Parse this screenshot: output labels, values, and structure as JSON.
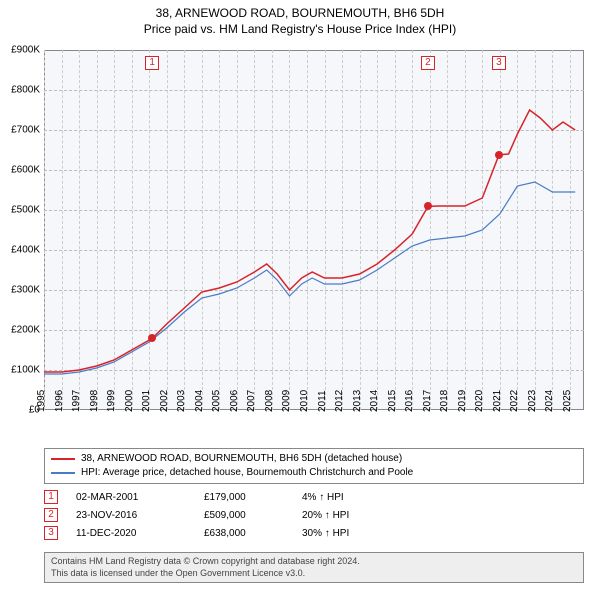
{
  "title": {
    "line1": "38, ARNEWOOD ROAD, BOURNEMOUTH, BH6 5DH",
    "line2": "Price paid vs. HM Land Registry's House Price Index (HPI)"
  },
  "chart": {
    "type": "line",
    "background_color": "#f5f7fa",
    "border_color": "#888888",
    "grid_color": "#cccccc",
    "hgrid_color": "#bbbbbb",
    "xlim": [
      1995,
      2025.8
    ],
    "ylim": [
      0,
      900000
    ],
    "ytick_step": 100000,
    "yticks": [
      "£0",
      "£100K",
      "£200K",
      "£300K",
      "£400K",
      "£500K",
      "£600K",
      "£700K",
      "£800K",
      "£900K"
    ],
    "xticks": [
      "1995",
      "1996",
      "1997",
      "1998",
      "1999",
      "2000",
      "2001",
      "2002",
      "2003",
      "2004",
      "2005",
      "2006",
      "2007",
      "2008",
      "2009",
      "2010",
      "2011",
      "2012",
      "2013",
      "2014",
      "2015",
      "2016",
      "2017",
      "2018",
      "2019",
      "2020",
      "2021",
      "2022",
      "2023",
      "2024",
      "2025"
    ],
    "series": [
      {
        "name": "property",
        "color": "#d8232a",
        "line_width": 1.5,
        "points": [
          [
            1995.0,
            95000
          ],
          [
            1996.0,
            95000
          ],
          [
            1997.0,
            100000
          ],
          [
            1998.0,
            110000
          ],
          [
            1999.0,
            125000
          ],
          [
            2000.0,
            150000
          ],
          [
            2001.17,
            179000
          ],
          [
            2002.0,
            215000
          ],
          [
            2003.0,
            255000
          ],
          [
            2004.0,
            295000
          ],
          [
            2005.0,
            305000
          ],
          [
            2006.0,
            320000
          ],
          [
            2007.0,
            345000
          ],
          [
            2007.7,
            365000
          ],
          [
            2008.3,
            340000
          ],
          [
            2009.0,
            300000
          ],
          [
            2009.7,
            330000
          ],
          [
            2010.3,
            345000
          ],
          [
            2011.0,
            330000
          ],
          [
            2012.0,
            330000
          ],
          [
            2013.0,
            340000
          ],
          [
            2014.0,
            365000
          ],
          [
            2015.0,
            400000
          ],
          [
            2016.0,
            440000
          ],
          [
            2016.9,
            509000
          ],
          [
            2017.5,
            510000
          ],
          [
            2018.0,
            510000
          ],
          [
            2019.0,
            510000
          ],
          [
            2020.0,
            530000
          ],
          [
            2020.95,
            638000
          ],
          [
            2021.5,
            640000
          ],
          [
            2022.0,
            690000
          ],
          [
            2022.7,
            750000
          ],
          [
            2023.3,
            730000
          ],
          [
            2024.0,
            700000
          ],
          [
            2024.6,
            720000
          ],
          [
            2025.3,
            700000
          ]
        ]
      },
      {
        "name": "hpi",
        "color": "#4a7bc8",
        "line_width": 1.2,
        "points": [
          [
            1995.0,
            90000
          ],
          [
            1996.0,
            90000
          ],
          [
            1997.0,
            95000
          ],
          [
            1998.0,
            105000
          ],
          [
            1999.0,
            120000
          ],
          [
            2000.0,
            145000
          ],
          [
            2001.0,
            170000
          ],
          [
            2002.0,
            205000
          ],
          [
            2003.0,
            245000
          ],
          [
            2004.0,
            280000
          ],
          [
            2005.0,
            290000
          ],
          [
            2006.0,
            305000
          ],
          [
            2007.0,
            330000
          ],
          [
            2007.7,
            350000
          ],
          [
            2008.3,
            325000
          ],
          [
            2009.0,
            285000
          ],
          [
            2009.7,
            315000
          ],
          [
            2010.3,
            330000
          ],
          [
            2011.0,
            315000
          ],
          [
            2012.0,
            315000
          ],
          [
            2013.0,
            325000
          ],
          [
            2014.0,
            350000
          ],
          [
            2015.0,
            380000
          ],
          [
            2016.0,
            410000
          ],
          [
            2017.0,
            425000
          ],
          [
            2018.0,
            430000
          ],
          [
            2019.0,
            435000
          ],
          [
            2020.0,
            450000
          ],
          [
            2021.0,
            490000
          ],
          [
            2022.0,
            560000
          ],
          [
            2023.0,
            570000
          ],
          [
            2024.0,
            545000
          ],
          [
            2025.3,
            545000
          ]
        ]
      }
    ],
    "sale_markers": [
      {
        "n": "1",
        "x": 2001.17,
        "y": 179000,
        "color": "#d8232a"
      },
      {
        "n": "2",
        "x": 2016.9,
        "y": 509000,
        "color": "#d8232a"
      },
      {
        "n": "3",
        "x": 2020.95,
        "y": 638000,
        "color": "#d8232a"
      }
    ]
  },
  "legend": {
    "items": [
      {
        "color": "#d8232a",
        "label": "38, ARNEWOOD ROAD, BOURNEMOUTH, BH6 5DH (detached house)"
      },
      {
        "color": "#4a7bc8",
        "label": "HPI: Average price, detached house, Bournemouth Christchurch and Poole"
      }
    ]
  },
  "sales": [
    {
      "n": "1",
      "color": "#d8232a",
      "date": "02-MAR-2001",
      "price": "£179,000",
      "delta": "4% ↑ HPI"
    },
    {
      "n": "2",
      "color": "#d8232a",
      "date": "23-NOV-2016",
      "price": "£509,000",
      "delta": "20% ↑ HPI"
    },
    {
      "n": "3",
      "color": "#d8232a",
      "date": "11-DEC-2020",
      "price": "£638,000",
      "delta": "30% ↑ HPI"
    }
  ],
  "footer": {
    "line1": "Contains HM Land Registry data © Crown copyright and database right 2024.",
    "line2": "This data is licensed under the Open Government Licence v3.0."
  }
}
